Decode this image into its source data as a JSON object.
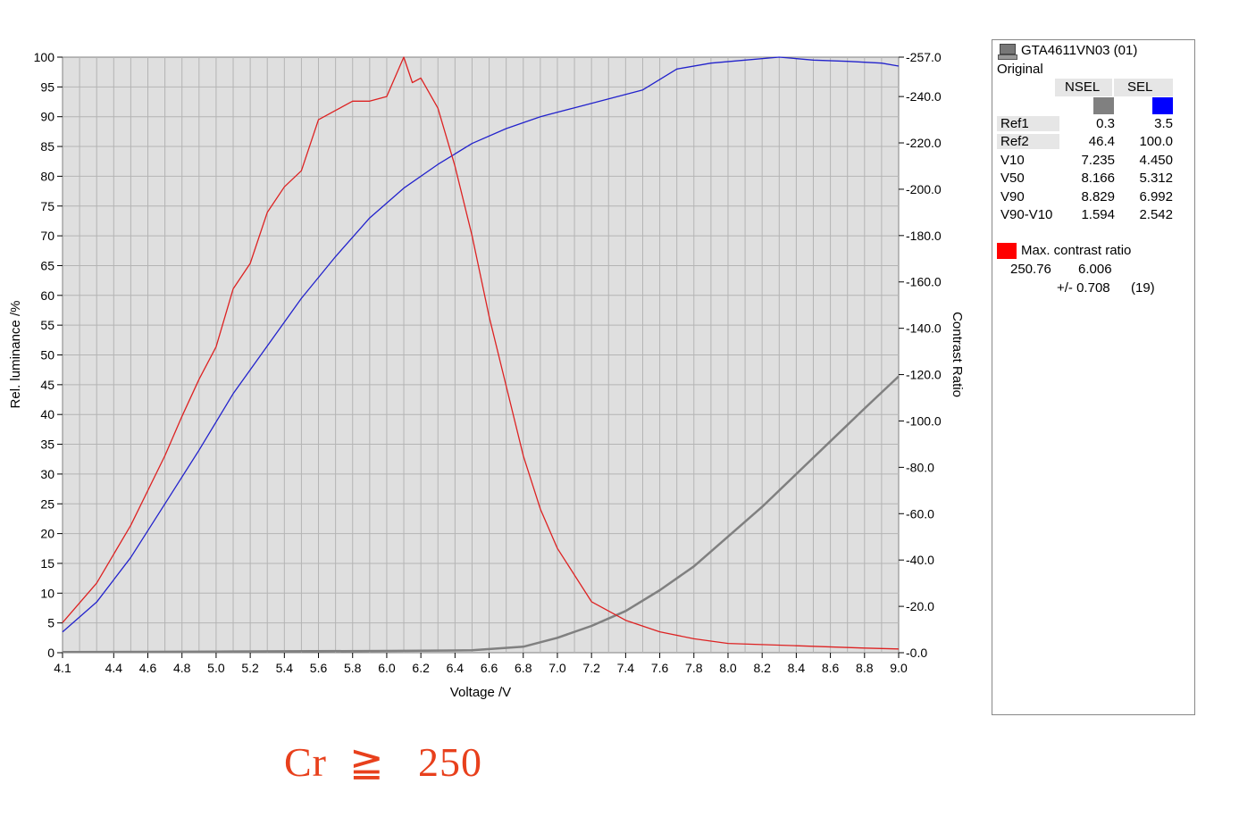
{
  "chart_data": {
    "type": "line",
    "xlabel": "Voltage /V",
    "ylabel": "Rel. luminance /%",
    "y2label": "Contrast Ratio",
    "xlim": [
      4.1,
      9.0
    ],
    "ylim": [
      0,
      100
    ],
    "y2lim": [
      0,
      257.0
    ],
    "x_ticks": [
      "4.1",
      "4.4",
      "4.6",
      "4.8",
      "5.0",
      "5.2",
      "5.4",
      "5.6",
      "5.8",
      "6.0",
      "6.2",
      "6.4",
      "6.6",
      "6.8",
      "7.0",
      "7.2",
      "7.4",
      "7.6",
      "7.8",
      "8.0",
      "8.2",
      "8.4",
      "8.6",
      "8.8",
      "9.0"
    ],
    "y_ticks": [
      "0",
      "5",
      "10",
      "15",
      "20",
      "25",
      "30",
      "35",
      "40",
      "45",
      "50",
      "55",
      "60",
      "65",
      "70",
      "75",
      "80",
      "85",
      "90",
      "95",
      "100"
    ],
    "y2_ticks": [
      "0.0",
      "20.0",
      "40.0",
      "60.0",
      "80.0",
      "100.0",
      "120.0",
      "140.0",
      "160.0",
      "180.0",
      "200.0",
      "220.0",
      "240.0",
      "257.0"
    ],
    "grid": true,
    "series": [
      {
        "axis": "left",
        "color": "#808080",
        "x": [
          4.1,
          5.0,
          6.0,
          6.5,
          6.8,
          7.0,
          7.2,
          7.4,
          7.6,
          7.8,
          8.0,
          8.2,
          8.4,
          8.6,
          8.8,
          9.0
        ],
        "y": [
          0.1,
          0.2,
          0.3,
          0.4,
          1.0,
          2.5,
          4.5,
          7.0,
          10.5,
          14.5,
          19.5,
          24.5,
          30.0,
          35.5,
          41.0,
          46.4
        ]
      },
      {
        "axis": "left",
        "color": "#2222cc",
        "x": [
          4.1,
          4.3,
          4.5,
          4.7,
          4.9,
          5.1,
          5.3,
          5.5,
          5.7,
          5.9,
          6.1,
          6.3,
          6.5,
          6.7,
          6.9,
          7.1,
          7.3,
          7.5,
          7.7,
          7.9,
          8.1,
          8.3,
          8.5,
          8.7,
          8.9,
          9.0
        ],
        "y": [
          3.5,
          8.5,
          16.0,
          25.0,
          34.0,
          43.5,
          51.5,
          59.5,
          66.5,
          73.0,
          78.0,
          82.0,
          85.5,
          88.0,
          90.0,
          91.5,
          93.0,
          94.5,
          98.0,
          99.0,
          99.5,
          100.0,
          99.5,
          99.3,
          99.0,
          98.5
        ]
      },
      {
        "axis": "right",
        "color": "#dd2222",
        "x": [
          4.1,
          4.3,
          4.5,
          4.7,
          4.8,
          4.9,
          5.0,
          5.1,
          5.2,
          5.3,
          5.4,
          5.5,
          5.6,
          5.7,
          5.8,
          5.9,
          6.0,
          6.1,
          6.15,
          6.2,
          6.3,
          6.4,
          6.5,
          6.6,
          6.7,
          6.8,
          6.9,
          7.0,
          7.2,
          7.4,
          7.6,
          7.8,
          8.0,
          8.4,
          8.8,
          9.0
        ],
        "y": [
          13,
          30,
          55,
          85,
          102,
          118,
          132,
          157,
          168,
          190,
          201,
          208,
          230,
          234,
          238,
          238,
          240,
          257,
          246,
          248,
          235,
          210,
          180,
          145,
          115,
          85,
          62,
          45,
          22,
          14,
          9,
          6,
          4,
          3,
          2,
          1.6
        ]
      }
    ]
  },
  "legend": {
    "title": "GTA4611VN03 (01)",
    "subtitle": "Original",
    "col_nsel": "NSEL",
    "col_sel": "SEL",
    "nsel_color": "#808080",
    "sel_color": "#0000ff",
    "rows": [
      {
        "label": "Ref1",
        "nsel": "0.3",
        "sel": "3.5"
      },
      {
        "label": "Ref2",
        "nsel": "46.4",
        "sel": "100.0"
      },
      {
        "label": "V10",
        "nsel": "7.235",
        "sel": "4.450"
      },
      {
        "label": "V50",
        "nsel": "8.166",
        "sel": "5.312"
      },
      {
        "label": "V90",
        "nsel": "8.829",
        "sel": "6.992"
      },
      {
        "label": "V90-V10",
        "nsel": "1.594",
        "sel": "2.542"
      }
    ],
    "contrast_color": "#ff0000",
    "contrast_label": "Max. contrast ratio",
    "contrast_value": "250.76",
    "contrast_voltage": "6.006",
    "contrast_tolerance": "+/- 0.708",
    "contrast_count": "(19)"
  },
  "note": "Cr  ≧   250"
}
